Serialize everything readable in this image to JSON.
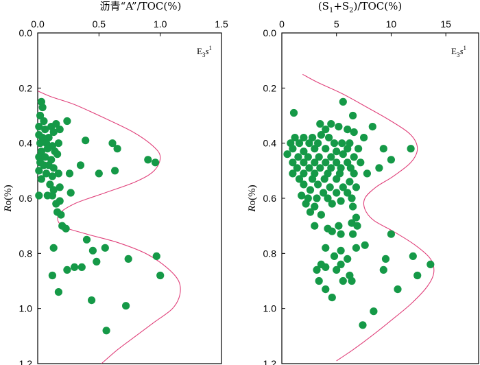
{
  "chart_data": [
    {
      "type": "scatter",
      "title": "沥青“A”/TOC(%)",
      "ylabel": "Ro(%)",
      "xlim": [
        0,
        1.5
      ],
      "ylim": [
        0,
        1.2
      ],
      "xticks": [
        "0.0",
        "0.5",
        "1.0",
        "1.5"
      ],
      "yticks": [
        "0.0",
        "0.2",
        "0.4",
        "0.6",
        "0.8",
        "1.0",
        "1.2"
      ],
      "y_inverted": true,
      "stratum": "E3s1",
      "marker_color": "#159947",
      "curve_color": "#e0407a",
      "points": [
        [
          0.03,
          0.25
        ],
        [
          0.04,
          0.27
        ],
        [
          0.02,
          0.3
        ],
        [
          0.05,
          0.32
        ],
        [
          0.24,
          0.32
        ],
        [
          0.11,
          0.34
        ],
        [
          0.15,
          0.33
        ],
        [
          0.01,
          0.34
        ],
        [
          0.06,
          0.35
        ],
        [
          0.18,
          0.35
        ],
        [
          0.01,
          0.37
        ],
        [
          0.04,
          0.38
        ],
        [
          0.09,
          0.38
        ],
        [
          0.13,
          0.36
        ],
        [
          0.02,
          0.4
        ],
        [
          0.07,
          0.4
        ],
        [
          0.12,
          0.41
        ],
        [
          0.17,
          0.4
        ],
        [
          0.39,
          0.39
        ],
        [
          0.61,
          0.4
        ],
        [
          0.03,
          0.43
        ],
        [
          0.08,
          0.42
        ],
        [
          0.14,
          0.43
        ],
        [
          0.65,
          0.42
        ],
        [
          0.01,
          0.45
        ],
        [
          0.06,
          0.45
        ],
        [
          0.11,
          0.46
        ],
        [
          0.16,
          0.44
        ],
        [
          0.02,
          0.47
        ],
        [
          0.05,
          0.48
        ],
        [
          0.09,
          0.48
        ],
        [
          0.13,
          0.49
        ],
        [
          0.9,
          0.46
        ],
        [
          0.96,
          0.47
        ],
        [
          0.35,
          0.48
        ],
        [
          0.01,
          0.5
        ],
        [
          0.07,
          0.51
        ],
        [
          0.12,
          0.52
        ],
        [
          0.17,
          0.51
        ],
        [
          0.26,
          0.51
        ],
        [
          0.5,
          0.51
        ],
        [
          0.63,
          0.5
        ],
        [
          0.03,
          0.53
        ],
        [
          0.1,
          0.55
        ],
        [
          0.18,
          0.56
        ],
        [
          0.13,
          0.57
        ],
        [
          0.27,
          0.58
        ],
        [
          0.01,
          0.59
        ],
        [
          0.08,
          0.59
        ],
        [
          0.12,
          0.59
        ],
        [
          0.15,
          0.62
        ],
        [
          0.18,
          0.61
        ],
        [
          0.16,
          0.65
        ],
        [
          0.19,
          0.66
        ],
        [
          0.2,
          0.7
        ],
        [
          0.23,
          0.71
        ],
        [
          0.4,
          0.75
        ],
        [
          0.13,
          0.78
        ],
        [
          0.45,
          0.79
        ],
        [
          0.55,
          0.78
        ],
        [
          0.48,
          0.83
        ],
        [
          0.74,
          0.82
        ],
        [
          0.97,
          0.81
        ],
        [
          0.3,
          0.85
        ],
        [
          0.36,
          0.85
        ],
        [
          0.24,
          0.86
        ],
        [
          0.12,
          0.88
        ],
        [
          1.0,
          0.88
        ],
        [
          0.17,
          0.94
        ],
        [
          0.44,
          0.97
        ],
        [
          0.72,
          0.99
        ],
        [
          0.56,
          1.08
        ]
      ],
      "envelope": [
        [
          -0.05,
          0.2
        ],
        [
          0.1,
          0.23
        ],
        [
          0.3,
          0.26
        ],
        [
          0.55,
          0.31
        ],
        [
          0.78,
          0.36
        ],
        [
          0.94,
          0.41
        ],
        [
          1.0,
          0.45
        ],
        [
          0.95,
          0.5
        ],
        [
          0.8,
          0.54
        ],
        [
          0.55,
          0.58
        ],
        [
          0.3,
          0.62
        ],
        [
          0.17,
          0.66
        ],
        [
          0.2,
          0.7
        ],
        [
          0.4,
          0.73
        ],
        [
          0.65,
          0.76
        ],
        [
          0.88,
          0.8
        ],
        [
          1.05,
          0.85
        ],
        [
          1.15,
          0.9
        ],
        [
          1.16,
          0.95
        ],
        [
          1.1,
          1.0
        ],
        [
          0.95,
          1.05
        ],
        [
          0.8,
          1.1
        ],
        [
          0.65,
          1.15
        ],
        [
          0.52,
          1.2
        ]
      ]
    },
    {
      "type": "scatter",
      "title": "(S1+S2)/TOC(%)",
      "title_main": "(S",
      "title_sub1": "1",
      "title_mid": "+S",
      "title_sub2": "2",
      "title_tail": ")/TOC(%)",
      "ylabel": "Ro(%)",
      "xlim": [
        0,
        18
      ],
      "ylim": [
        0,
        1.2
      ],
      "xticks": [
        "0",
        "5",
        "10",
        "15"
      ],
      "yticks": [
        "0.0",
        "0.2",
        "0.4",
        "0.6",
        "0.8",
        "1.0",
        "1.2"
      ],
      "y_inverted": true,
      "stratum": "E3s1",
      "marker_color": "#159947",
      "curve_color": "#e0407a",
      "points": [
        [
          5.6,
          0.25
        ],
        [
          1.1,
          0.29
        ],
        [
          6.5,
          0.3
        ],
        [
          3.5,
          0.33
        ],
        [
          4.5,
          0.33
        ],
        [
          5.2,
          0.34
        ],
        [
          8.3,
          0.34
        ],
        [
          4.0,
          0.35
        ],
        [
          6.0,
          0.35
        ],
        [
          6.6,
          0.36
        ],
        [
          1.2,
          0.38
        ],
        [
          2.0,
          0.38
        ],
        [
          2.8,
          0.38
        ],
        [
          3.6,
          0.37
        ],
        [
          4.3,
          0.38
        ],
        [
          7.5,
          0.38
        ],
        [
          0.8,
          0.4
        ],
        [
          1.6,
          0.4
        ],
        [
          2.5,
          0.4
        ],
        [
          3.3,
          0.4
        ],
        [
          4.8,
          0.4
        ],
        [
          5.5,
          0.4
        ],
        [
          6.2,
          0.4
        ],
        [
          1.0,
          0.42
        ],
        [
          2.0,
          0.43
        ],
        [
          3.0,
          0.42
        ],
        [
          4.0,
          0.42
        ],
        [
          5.0,
          0.43
        ],
        [
          6.0,
          0.42
        ],
        [
          7.0,
          0.42
        ],
        [
          9.3,
          0.42
        ],
        [
          11.8,
          0.42
        ],
        [
          0.5,
          0.44
        ],
        [
          1.5,
          0.45
        ],
        [
          2.4,
          0.45
        ],
        [
          3.4,
          0.45
        ],
        [
          4.5,
          0.45
        ],
        [
          5.6,
          0.44
        ],
        [
          6.6,
          0.45
        ],
        [
          1.0,
          0.47
        ],
        [
          2.0,
          0.47
        ],
        [
          3.0,
          0.47
        ],
        [
          4.0,
          0.47
        ],
        [
          5.0,
          0.47
        ],
        [
          6.0,
          0.47
        ],
        [
          7.2,
          0.47
        ],
        [
          10.0,
          0.46
        ],
        [
          1.4,
          0.49
        ],
        [
          2.5,
          0.49
        ],
        [
          3.5,
          0.49
        ],
        [
          4.5,
          0.49
        ],
        [
          5.4,
          0.49
        ],
        [
          6.3,
          0.49
        ],
        [
          8.9,
          0.49
        ],
        [
          1.0,
          0.51
        ],
        [
          2.0,
          0.51
        ],
        [
          3.0,
          0.51
        ],
        [
          4.2,
          0.51
        ],
        [
          5.3,
          0.51
        ],
        [
          6.6,
          0.51
        ],
        [
          7.8,
          0.51
        ],
        [
          1.6,
          0.53
        ],
        [
          2.8,
          0.53
        ],
        [
          3.9,
          0.53
        ],
        [
          5.0,
          0.53
        ],
        [
          6.2,
          0.54
        ],
        [
          2.0,
          0.55
        ],
        [
          3.3,
          0.55
        ],
        [
          4.4,
          0.56
        ],
        [
          5.6,
          0.56
        ],
        [
          6.8,
          0.56
        ],
        [
          2.6,
          0.57
        ],
        [
          3.8,
          0.58
        ],
        [
          5.0,
          0.58
        ],
        [
          6.0,
          0.58
        ],
        [
          1.8,
          0.59
        ],
        [
          2.4,
          0.6
        ],
        [
          3.2,
          0.6
        ],
        [
          4.2,
          0.6
        ],
        [
          5.4,
          0.61
        ],
        [
          6.4,
          0.6
        ],
        [
          2.2,
          0.62
        ],
        [
          3.0,
          0.63
        ],
        [
          4.6,
          0.62
        ],
        [
          6.5,
          0.63
        ],
        [
          2.6,
          0.65
        ],
        [
          3.6,
          0.66
        ],
        [
          6.8,
          0.67
        ],
        [
          3.0,
          0.7
        ],
        [
          4.2,
          0.71
        ],
        [
          5.2,
          0.7
        ],
        [
          6.4,
          0.69
        ],
        [
          6.9,
          0.7
        ],
        [
          4.6,
          0.72
        ],
        [
          5.4,
          0.73
        ],
        [
          6.5,
          0.73
        ],
        [
          10.0,
          0.73
        ],
        [
          7.6,
          0.77
        ],
        [
          4.0,
          0.78
        ],
        [
          6.8,
          0.78
        ],
        [
          5.4,
          0.79
        ],
        [
          4.8,
          0.81
        ],
        [
          12.0,
          0.81
        ],
        [
          6.0,
          0.82
        ],
        [
          9.5,
          0.82
        ],
        [
          3.6,
          0.84
        ],
        [
          5.4,
          0.84
        ],
        [
          13.6,
          0.84
        ],
        [
          4.0,
          0.85
        ],
        [
          3.2,
          0.86
        ],
        [
          9.3,
          0.86
        ],
        [
          5.0,
          0.86
        ],
        [
          6.2,
          0.88
        ],
        [
          12.4,
          0.88
        ],
        [
          3.4,
          0.9
        ],
        [
          5.6,
          0.9
        ],
        [
          6.4,
          0.9
        ],
        [
          4.0,
          0.93
        ],
        [
          4.6,
          0.96
        ],
        [
          10.6,
          0.93
        ],
        [
          8.4,
          1.01
        ],
        [
          7.4,
          1.06
        ]
      ],
      "envelope": [
        [
          1.9,
          0.15
        ],
        [
          3.3,
          0.18
        ],
        [
          5.5,
          0.22
        ],
        [
          7.8,
          0.27
        ],
        [
          10.0,
          0.32
        ],
        [
          11.8,
          0.37
        ],
        [
          12.4,
          0.42
        ],
        [
          11.8,
          0.47
        ],
        [
          10.2,
          0.52
        ],
        [
          8.6,
          0.56
        ],
        [
          7.6,
          0.6
        ],
        [
          7.6,
          0.64
        ],
        [
          8.4,
          0.68
        ],
        [
          10.2,
          0.72
        ],
        [
          12.2,
          0.77
        ],
        [
          13.6,
          0.82
        ],
        [
          13.9,
          0.87
        ],
        [
          13.3,
          0.92
        ],
        [
          11.9,
          0.98
        ],
        [
          10.1,
          1.04
        ],
        [
          8.2,
          1.1
        ],
        [
          6.5,
          1.15
        ],
        [
          5.0,
          1.19
        ]
      ]
    }
  ]
}
